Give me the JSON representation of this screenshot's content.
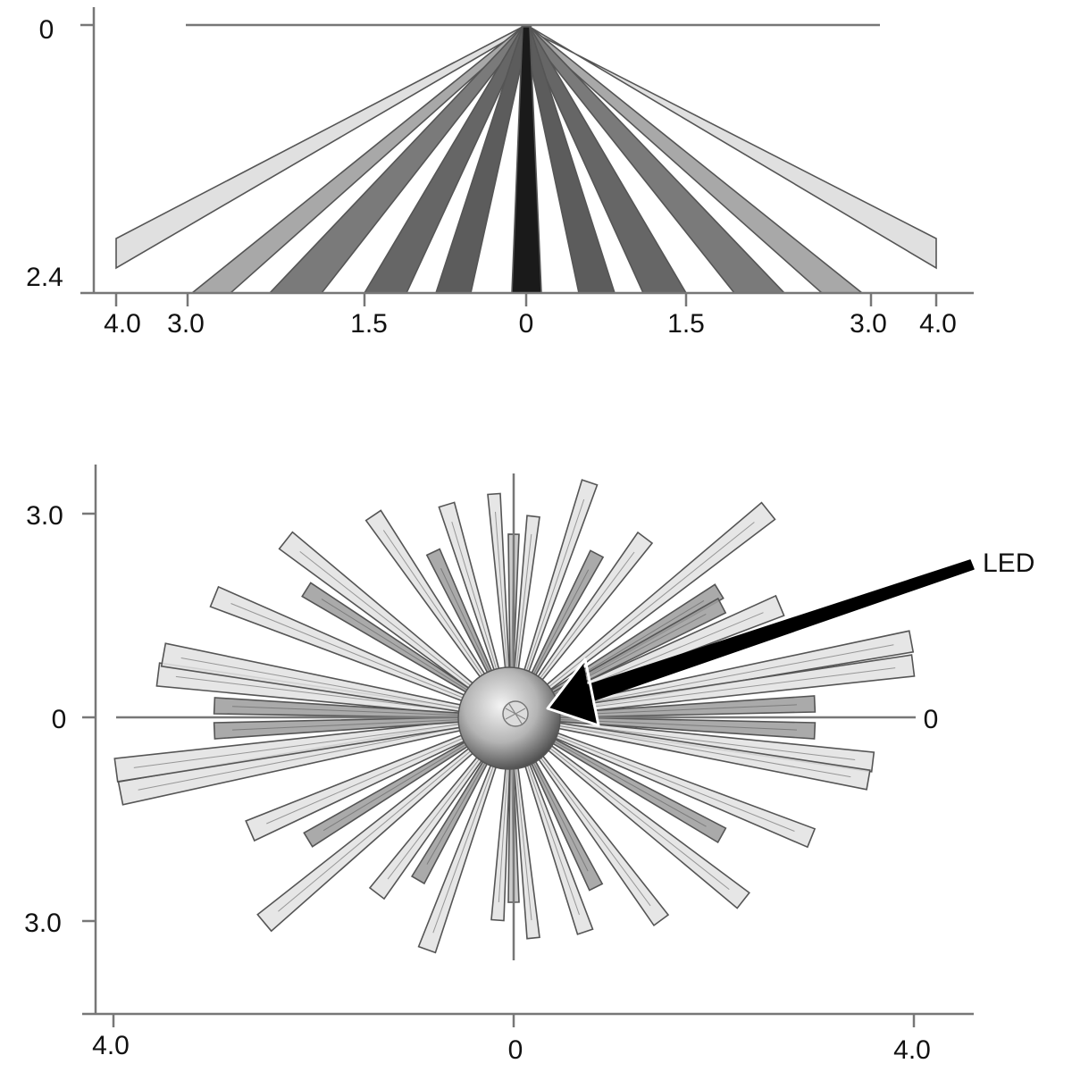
{
  "side_view": {
    "y_ticks": [
      "0",
      "2.4"
    ],
    "x_ticks": [
      "4.0",
      "3.0",
      "1.5",
      "0",
      "1.5",
      "3.0",
      "4.0"
    ],
    "beam_fills": [
      "#e0e0e0",
      "#a8a8a8",
      "#7a7a7a",
      "#666666",
      "#5c5c5c",
      "#1a1a1a"
    ]
  },
  "top_view": {
    "y_ticks": [
      "3.0",
      "0",
      "3.0"
    ],
    "x_ticks": [
      "4.0",
      "0",
      "4.0"
    ],
    "right_tick": "0",
    "callout": "LED",
    "beam_fills": [
      "#e2e2e2",
      "#9e9e9e",
      "#c4c4c4"
    ]
  }
}
